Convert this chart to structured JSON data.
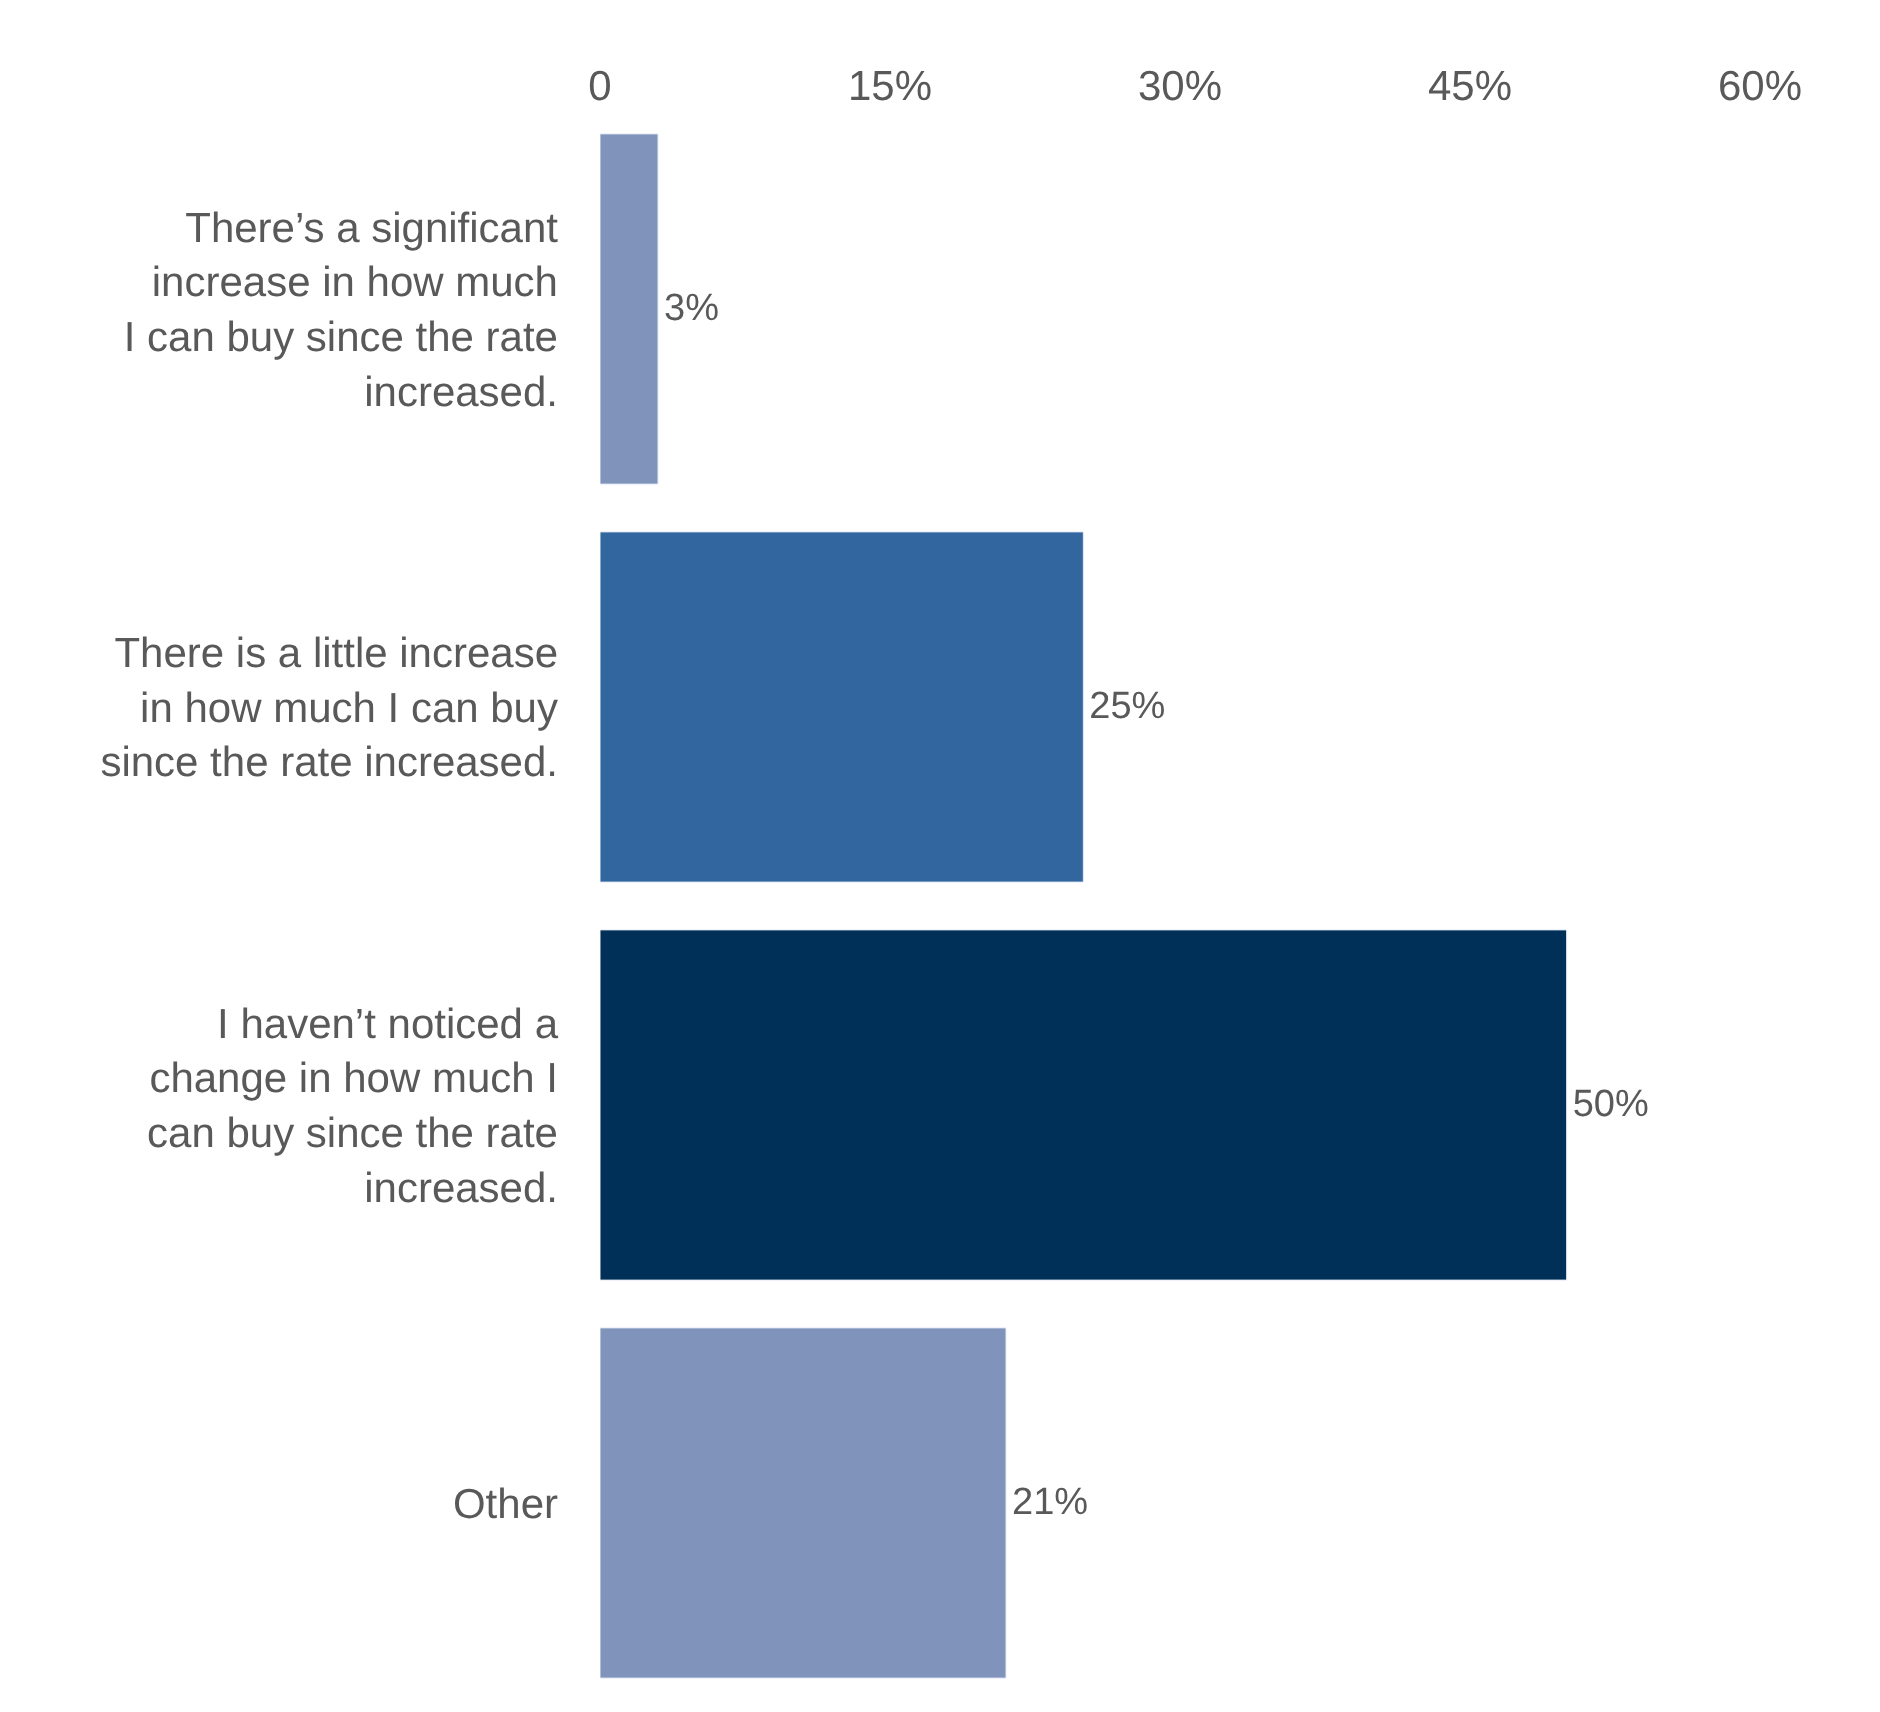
{
  "chart_data": {
    "type": "bar",
    "orientation": "horizontal",
    "categories": [
      "There’s a significant\nincrease in how much\nI can buy since the rate\nincreased.",
      "There is a little increase\nin how much I can buy\nsince the rate increased.",
      "I haven’t noticed a\nchange in how much I\ncan buy since the rate\nincreased.",
      "Other"
    ],
    "values": [
      3,
      25,
      50,
      21
    ],
    "colors": [
      "#7f93bb",
      "#31669e",
      "#003057",
      "#7f93bb"
    ],
    "value_labels": [
      "3%",
      "25%",
      "50%",
      "21%"
    ],
    "xlim": [
      0,
      60
    ],
    "xticks": [
      0,
      {
        "value": 15,
        "label": "15%"
      },
      {
        "value": 30,
        "label": "30%"
      },
      {
        "value": 45,
        "label": "45%"
      },
      {
        "value": 60,
        "label": "60%"
      }
    ],
    "tick_labels": "x"
  }
}
